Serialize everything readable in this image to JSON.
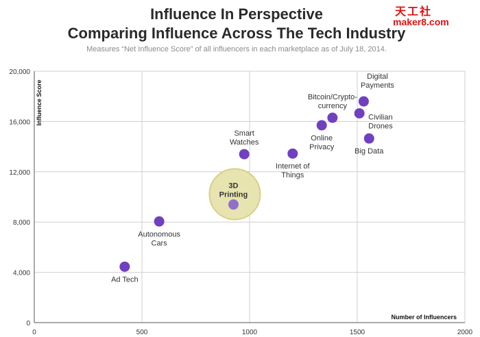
{
  "header": {
    "title_line1": "Influence In Perspective",
    "title_line2": "Comparing Influence Across The Tech Industry",
    "subtitle": "Measures “Net Influence Score” of all influencers in each marketplace as of July 18, 2014."
  },
  "watermark": {
    "cn": "天工社",
    "url": "maker8.com",
    "color": "#e01010"
  },
  "chart_data": {
    "type": "scatter",
    "title": "Influence In Perspective",
    "subtitle": "Comparing Influence Across The Tech Industry",
    "xlabel": "Number of Influencers",
    "ylabel": "Influence Score",
    "xlim": [
      0,
      2000
    ],
    "ylim": [
      0,
      20000
    ],
    "x_ticks": [
      0,
      500,
      1000,
      1500,
      2000
    ],
    "y_ticks": [
      0,
      4000,
      8000,
      12000,
      16000,
      20000
    ],
    "x_tick_labels": [
      "0",
      "500",
      "1000",
      "1500",
      "2000"
    ],
    "y_tick_labels": [
      "0",
      "4,000",
      "8,000",
      "12,000",
      "16,000",
      "20,000"
    ],
    "grid": true,
    "point_color": "#7040c0",
    "highlight_color": "#e8e4b0",
    "points": [
      {
        "label": [
          "Ad Tech"
        ],
        "x": 420,
        "y": 4450,
        "label_pos": "below"
      },
      {
        "label": [
          "Autonomous",
          "Cars"
        ],
        "x": 580,
        "y": 8050,
        "label_pos": "below"
      },
      {
        "label": [
          "3D",
          "Printing"
        ],
        "x": 925,
        "y": 9400,
        "label_pos": "above",
        "highlight": true
      },
      {
        "label": [
          "Smart",
          "Watches"
        ],
        "x": 975,
        "y": 13400,
        "label_pos": "above"
      },
      {
        "label": [
          "Internet of",
          "Things"
        ],
        "x": 1200,
        "y": 13450,
        "label_pos": "below"
      },
      {
        "label": [
          "Online",
          "Privacy"
        ],
        "x": 1335,
        "y": 15700,
        "label_pos": "below"
      },
      {
        "label": [
          "Bitcoin/Crypto-",
          "currency"
        ],
        "x": 1385,
        "y": 16300,
        "label_pos": "above"
      },
      {
        "label": [
          "Digital",
          "Payments"
        ],
        "x": 1530,
        "y": 17600,
        "label_pos": "above-right"
      },
      {
        "label": [
          "Civilian",
          "Drones"
        ],
        "x": 1510,
        "y": 16650,
        "label_pos": "right"
      },
      {
        "label": [
          "Big Data"
        ],
        "x": 1555,
        "y": 14650,
        "label_pos": "below"
      }
    ]
  }
}
